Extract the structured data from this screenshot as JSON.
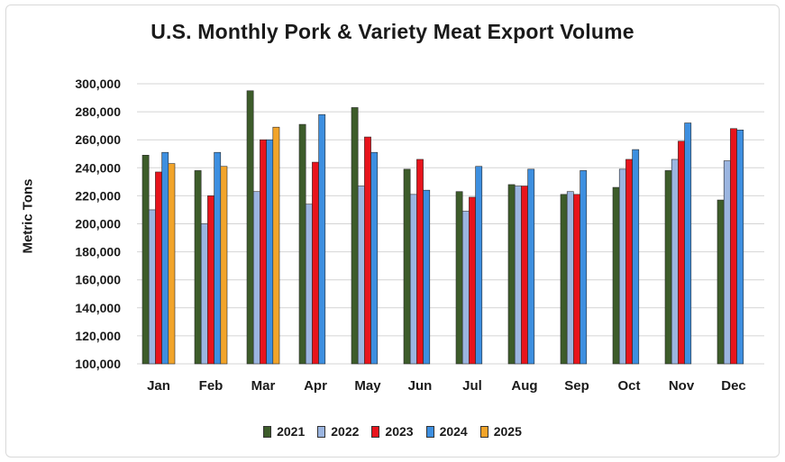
{
  "chart_data": {
    "type": "bar",
    "title": "U.S. Monthly Pork & Variety Meat Export Volume",
    "xlabel": "",
    "ylabel": "Metric Tons",
    "ylim": [
      100000,
      300000
    ],
    "yticks": [
      "100,000",
      "120,000",
      "140,000",
      "160,000",
      "180,000",
      "200,000",
      "220,000",
      "240,000",
      "260,000",
      "280,000",
      "300,000"
    ],
    "grid": true,
    "legend_position": "bottom",
    "categories": [
      "Jan",
      "Feb",
      "Mar",
      "Apr",
      "May",
      "Jun",
      "Jul",
      "Aug",
      "Sep",
      "Oct",
      "Nov",
      "Dec"
    ],
    "series": [
      {
        "name": "2021",
        "color": "#3d5c2a",
        "values": [
          249000,
          238000,
          295000,
          271000,
          283000,
          239000,
          223000,
          228000,
          221000,
          226000,
          238000,
          217000
        ]
      },
      {
        "name": "2022",
        "color": "#9bb5e0",
        "values": [
          210000,
          200000,
          223000,
          214000,
          227000,
          221000,
          209000,
          227000,
          223000,
          239000,
          246000,
          245000
        ]
      },
      {
        "name": "2023",
        "color": "#e8141c",
        "values": [
          237000,
          220000,
          260000,
          244000,
          262000,
          246000,
          219000,
          227000,
          221000,
          246000,
          259000,
          268000
        ]
      },
      {
        "name": "2024",
        "color": "#3d8fe0",
        "values": [
          251000,
          251000,
          260000,
          278000,
          251000,
          224000,
          241000,
          239000,
          238000,
          253000,
          272000,
          267000
        ]
      },
      {
        "name": "2025",
        "color": "#f2a42a",
        "values": [
          243000,
          241000,
          269000,
          null,
          null,
          null,
          null,
          null,
          null,
          null,
          null,
          null
        ]
      }
    ]
  }
}
